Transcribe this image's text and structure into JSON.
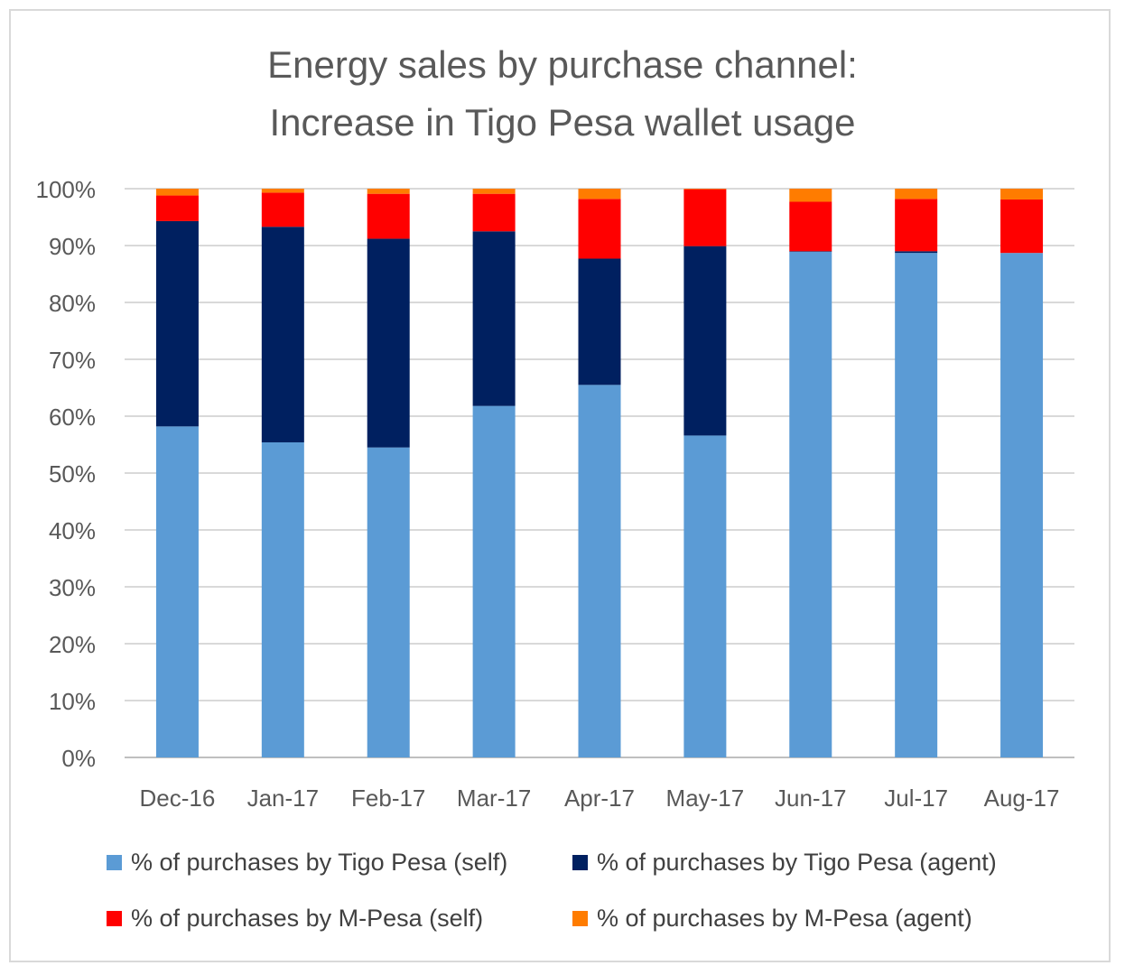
{
  "chart_data": {
    "type": "bar",
    "stacked": true,
    "title_lines": [
      "Energy sales by purchase channel:",
      "Increase in Tigo Pesa wallet usage"
    ],
    "categories": [
      "Dec-16",
      "Jan-17",
      "Feb-17",
      "Mar-17",
      "Apr-17",
      "May-17",
      "Jun-17",
      "Jul-17",
      "Aug-17"
    ],
    "ylim": [
      0,
      100
    ],
    "yticks": [
      "0%",
      "10%",
      "20%",
      "30%",
      "40%",
      "50%",
      "60%",
      "70%",
      "80%",
      "90%",
      "100%"
    ],
    "grid": true,
    "legend_position": "bottom",
    "series": [
      {
        "name": "% of purchases by Tigo Pesa (self)",
        "color": "#5b9bd5",
        "values": [
          58.2,
          55.4,
          54.5,
          61.8,
          65.5,
          56.6,
          88.9,
          88.7,
          88.7
        ]
      },
      {
        "name": "% of purchases by Tigo Pesa (agent)",
        "color": "#002060",
        "values": [
          36.1,
          37.9,
          36.7,
          30.7,
          22.2,
          33.3,
          0.1,
          0.3,
          0.0
        ]
      },
      {
        "name": "% of purchases by M-Pesa (self)",
        "color": "#ff0000",
        "values": [
          4.5,
          6.0,
          7.9,
          6.6,
          10.5,
          10.0,
          8.7,
          9.2,
          9.4
        ]
      },
      {
        "name": "% of purchases by M-Pesa (agent)",
        "color": "#ff7c00",
        "values": [
          1.2,
          0.7,
          0.9,
          0.9,
          1.8,
          0.1,
          2.3,
          1.8,
          1.9
        ]
      }
    ]
  }
}
